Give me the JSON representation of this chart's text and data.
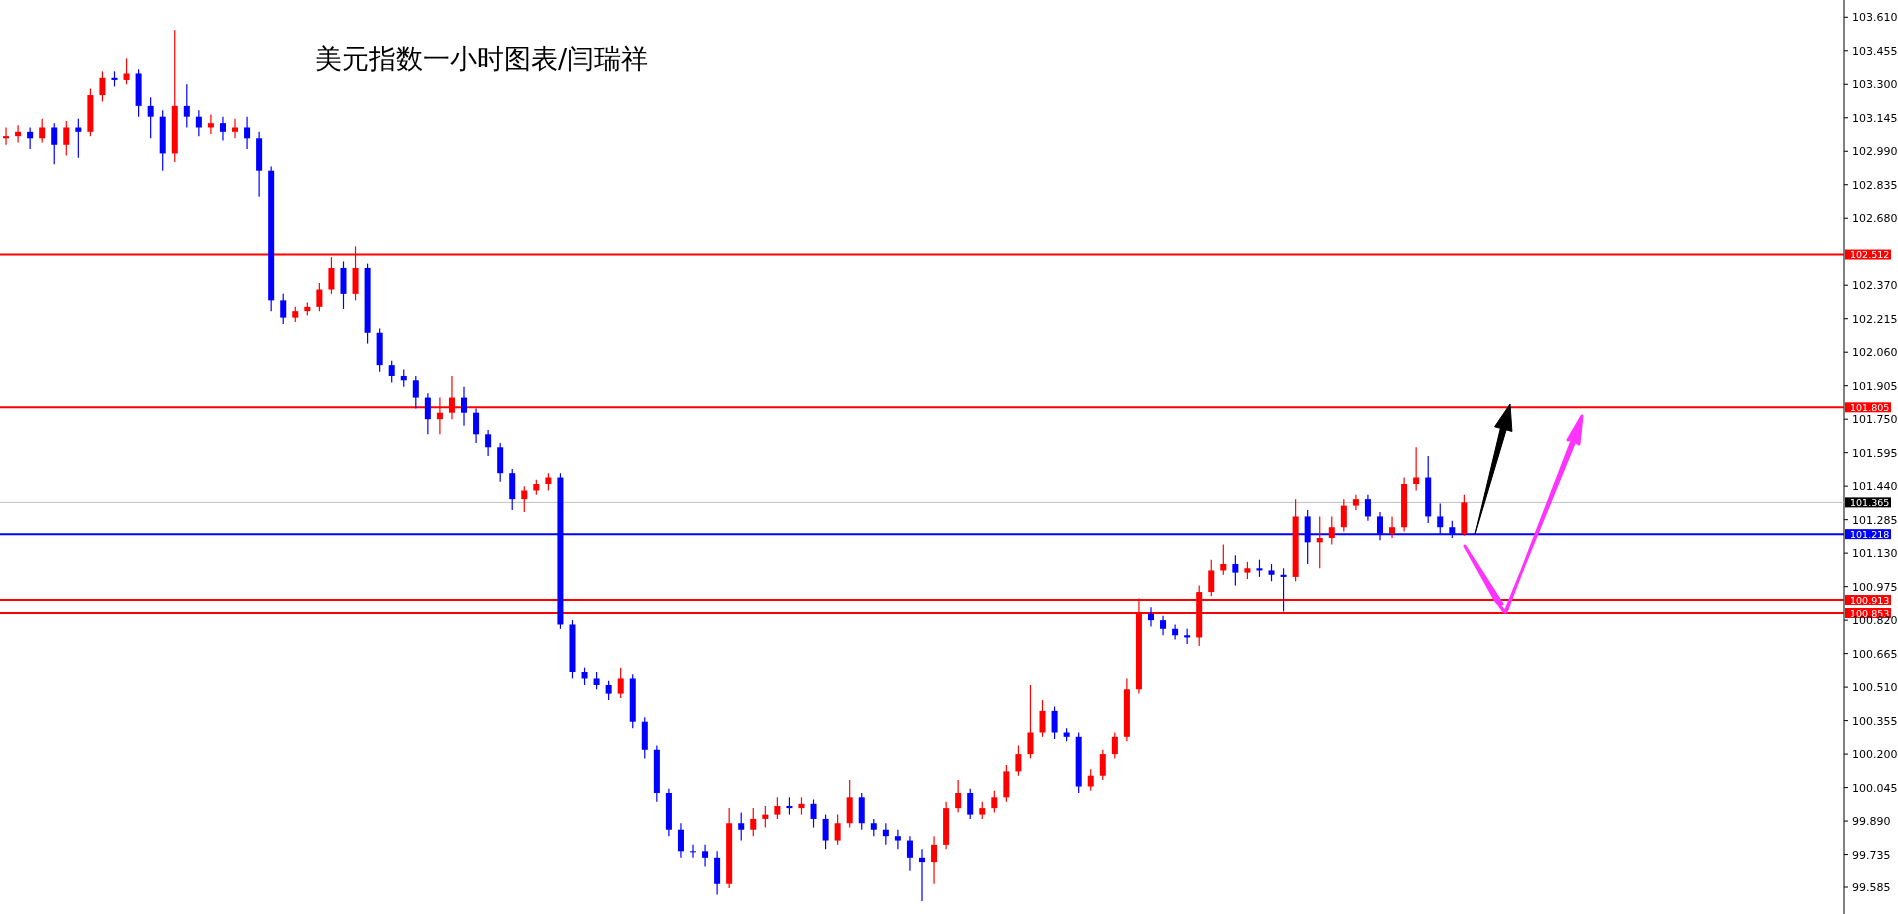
{
  "chart_data": {
    "type": "candlestick",
    "title": "美元指数一小时图表/闫瑞祥",
    "tick_labels": "y",
    "grid": false,
    "categories": [
      null,
      null,
      null,
      null,
      null,
      null,
      null,
      null,
      null,
      null,
      null,
      null,
      null,
      null,
      null,
      null,
      null,
      null,
      null,
      null,
      null,
      null,
      null,
      null,
      null,
      null,
      null,
      null,
      null,
      null,
      null,
      null,
      null,
      null,
      null,
      null,
      null,
      null,
      null,
      null,
      null,
      null,
      null,
      null,
      null,
      null,
      null,
      null,
      null,
      null,
      null,
      null,
      null,
      null,
      null,
      null,
      null,
      null,
      null,
      null,
      null,
      null,
      null,
      null,
      null,
      null,
      null,
      null,
      null,
      null,
      null,
      null,
      null,
      null,
      null,
      null,
      null,
      null,
      null,
      null,
      null,
      null,
      null,
      null,
      null,
      null,
      null,
      null,
      null,
      null,
      null,
      null,
      null,
      null,
      null,
      null,
      null,
      null,
      null,
      null,
      null,
      null,
      null,
      null,
      null,
      null,
      null,
      null,
      null,
      null,
      null,
      null,
      null,
      null,
      null,
      null,
      null,
      null,
      null,
      null,
      null,
      null,
      null,
      null,
      null,
      null,
      null,
      null,
      null,
      null,
      null,
      null,
      null,
      null,
      null,
      null,
      null,
      null,
      null,
      null,
      null,
      null,
      null,
      null,
      null,
      null,
      null,
      null,
      null,
      null,
      null,
      null,
      null
    ],
    "ohlc": [
      [
        103.05,
        103.1,
        103.02,
        103.06
      ],
      [
        103.06,
        103.11,
        103.03,
        103.08
      ],
      [
        103.08,
        103.1,
        103.0,
        103.05
      ],
      [
        103.05,
        103.14,
        103.03,
        103.1
      ],
      [
        103.1,
        103.12,
        102.93,
        103.02
      ],
      [
        103.02,
        103.13,
        102.97,
        103.1
      ],
      [
        103.1,
        103.14,
        102.96,
        103.08
      ],
      [
        103.08,
        103.28,
        103.06,
        103.25
      ],
      [
        103.25,
        103.36,
        103.22,
        103.33
      ],
      [
        103.33,
        103.36,
        103.29,
        103.32
      ],
      [
        103.32,
        103.42,
        103.3,
        103.35
      ],
      [
        103.35,
        103.37,
        103.15,
        103.2
      ],
      [
        103.2,
        103.24,
        103.05,
        103.15
      ],
      [
        103.15,
        103.18,
        102.9,
        102.98
      ],
      [
        102.98,
        103.55,
        102.94,
        103.2
      ],
      [
        103.2,
        103.3,
        103.1,
        103.15
      ],
      [
        103.15,
        103.18,
        103.06,
        103.1
      ],
      [
        103.1,
        103.16,
        103.07,
        103.12
      ],
      [
        103.12,
        103.15,
        103.04,
        103.08
      ],
      [
        103.08,
        103.14,
        103.05,
        103.1
      ],
      [
        103.1,
        103.15,
        103.0,
        103.05
      ],
      [
        103.05,
        103.08,
        102.78,
        102.9
      ],
      [
        102.9,
        102.92,
        102.25,
        102.3
      ],
      [
        102.3,
        102.33,
        102.19,
        102.22
      ],
      [
        102.22,
        102.27,
        102.2,
        102.25
      ],
      [
        102.25,
        102.29,
        102.23,
        102.27
      ],
      [
        102.27,
        102.38,
        102.25,
        102.35
      ],
      [
        102.35,
        102.5,
        102.33,
        102.45
      ],
      [
        102.45,
        102.48,
        102.26,
        102.33
      ],
      [
        102.33,
        102.55,
        102.3,
        102.45
      ],
      [
        102.45,
        102.47,
        102.1,
        102.15
      ],
      [
        102.15,
        102.17,
        101.97,
        102.0
      ],
      [
        102.0,
        102.02,
        101.92,
        101.95
      ],
      [
        101.95,
        101.98,
        101.9,
        101.93
      ],
      [
        101.93,
        101.95,
        101.8,
        101.85
      ],
      [
        101.85,
        101.87,
        101.68,
        101.75
      ],
      [
        101.75,
        101.85,
        101.68,
        101.78
      ],
      [
        101.78,
        101.95,
        101.75,
        101.85
      ],
      [
        101.85,
        101.9,
        101.72,
        101.78
      ],
      [
        101.78,
        101.8,
        101.64,
        101.68
      ],
      [
        101.68,
        101.7,
        101.58,
        101.62
      ],
      [
        101.62,
        101.64,
        101.46,
        101.5
      ],
      [
        101.5,
        101.52,
        101.33,
        101.38
      ],
      [
        101.38,
        101.44,
        101.32,
        101.42
      ],
      [
        101.42,
        101.47,
        101.4,
        101.45
      ],
      [
        101.45,
        101.5,
        101.42,
        101.48
      ],
      [
        101.48,
        101.5,
        100.78,
        100.8
      ],
      [
        100.8,
        100.82,
        100.55,
        100.58
      ],
      [
        100.58,
        100.6,
        100.52,
        100.55
      ],
      [
        100.55,
        100.58,
        100.5,
        100.52
      ],
      [
        100.52,
        100.54,
        100.45,
        100.48
      ],
      [
        100.48,
        100.6,
        100.46,
        100.55
      ],
      [
        100.55,
        100.57,
        100.32,
        100.35
      ],
      [
        100.35,
        100.37,
        100.18,
        100.22
      ],
      [
        100.22,
        100.24,
        99.98,
        100.02
      ],
      [
        100.02,
        100.04,
        99.82,
        99.85
      ],
      [
        99.85,
        99.88,
        99.72,
        99.75
      ],
      [
        99.75,
        99.78,
        99.72,
        99.75
      ],
      [
        99.75,
        99.78,
        99.68,
        99.72
      ],
      [
        99.72,
        99.75,
        99.55,
        99.6
      ],
      [
        99.6,
        99.95,
        99.58,
        99.88
      ],
      [
        99.88,
        99.93,
        99.8,
        99.85
      ],
      [
        99.85,
        99.95,
        99.82,
        99.9
      ],
      [
        99.9,
        99.96,
        99.86,
        99.92
      ],
      [
        99.92,
        100.0,
        99.9,
        99.96
      ],
      [
        99.96,
        100.0,
        99.92,
        99.95
      ],
      [
        99.95,
        100.0,
        99.92,
        99.97
      ],
      [
        99.97,
        99.99,
        99.86,
        99.9
      ],
      [
        99.9,
        99.92,
        99.76,
        99.8
      ],
      [
        99.8,
        99.92,
        99.78,
        99.88
      ],
      [
        99.88,
        100.08,
        99.86,
        100.0
      ],
      [
        100.0,
        100.02,
        99.85,
        99.88
      ],
      [
        99.88,
        99.9,
        99.82,
        99.85
      ],
      [
        99.85,
        99.88,
        99.78,
        99.82
      ],
      [
        99.82,
        99.85,
        99.76,
        99.8
      ],
      [
        99.8,
        99.82,
        99.66,
        99.72
      ],
      [
        99.72,
        99.76,
        99.52,
        99.7
      ],
      [
        99.7,
        99.82,
        99.6,
        99.78
      ],
      [
        99.78,
        99.98,
        99.76,
        99.95
      ],
      [
        99.95,
        100.08,
        99.93,
        100.02
      ],
      [
        100.02,
        100.04,
        99.9,
        99.92
      ],
      [
        99.92,
        99.98,
        99.9,
        99.95
      ],
      [
        99.95,
        100.03,
        99.93,
        100.0
      ],
      [
        100.0,
        100.15,
        99.98,
        100.12
      ],
      [
        100.12,
        100.24,
        100.1,
        100.2
      ],
      [
        100.2,
        100.52,
        100.18,
        100.3
      ],
      [
        100.3,
        100.45,
        100.28,
        100.4
      ],
      [
        100.4,
        100.42,
        100.27,
        100.3
      ],
      [
        100.3,
        100.32,
        100.26,
        100.28
      ],
      [
        100.28,
        100.3,
        100.02,
        100.05
      ],
      [
        100.05,
        100.13,
        100.03,
        100.1
      ],
      [
        100.1,
        100.22,
        100.08,
        100.2
      ],
      [
        100.2,
        100.3,
        100.18,
        100.28
      ],
      [
        100.28,
        100.55,
        100.26,
        100.5
      ],
      [
        100.5,
        100.92,
        100.48,
        100.85
      ],
      [
        100.85,
        100.88,
        100.79,
        100.82
      ],
      [
        100.82,
        100.84,
        100.75,
        100.78
      ],
      [
        100.78,
        100.8,
        100.73,
        100.75
      ],
      [
        100.75,
        100.78,
        100.71,
        100.74
      ],
      [
        100.74,
        100.98,
        100.7,
        100.95
      ],
      [
        100.95,
        101.1,
        100.93,
        101.05
      ],
      [
        101.05,
        101.17,
        101.03,
        101.08
      ],
      [
        101.08,
        101.12,
        100.98,
        101.04
      ],
      [
        101.04,
        101.09,
        101.01,
        101.06
      ],
      [
        101.06,
        101.1,
        101.02,
        101.05
      ],
      [
        101.05,
        101.08,
        101.0,
        101.03
      ],
      [
        101.03,
        101.06,
        100.86,
        101.02
      ],
      [
        101.02,
        101.38,
        101.0,
        101.3
      ],
      [
        101.3,
        101.33,
        101.08,
        101.18
      ],
      [
        101.18,
        101.3,
        101.06,
        101.2
      ],
      [
        101.2,
        101.3,
        101.17,
        101.25
      ],
      [
        101.25,
        101.38,
        101.23,
        101.35
      ],
      [
        101.35,
        101.4,
        101.33,
        101.38
      ],
      [
        101.38,
        101.4,
        101.28,
        101.3
      ],
      [
        101.3,
        101.32,
        101.19,
        101.22
      ],
      [
        101.22,
        101.3,
        101.2,
        101.25
      ],
      [
        101.25,
        101.48,
        101.23,
        101.45
      ],
      [
        101.45,
        101.62,
        101.42,
        101.48
      ],
      [
        101.48,
        101.58,
        101.27,
        101.3
      ],
      [
        101.3,
        101.36,
        101.22,
        101.25
      ],
      [
        101.25,
        101.28,
        101.2,
        101.22
      ],
      [
        101.22,
        101.4,
        101.21,
        101.365
      ],
      null,
      null,
      null,
      null,
      null,
      null,
      null,
      null,
      null,
      null,
      null,
      null,
      null,
      null,
      null,
      null,
      null,
      null,
      null,
      null,
      null,
      null,
      null,
      null,
      null,
      null,
      null,
      null,
      null,
      null,
      null
    ],
    "colors": [
      "#ff0000",
      "#ff0000",
      "#0000ff",
      "#ff0000",
      "#0000ff",
      "#ff0000",
      "#0000ff",
      "#ff0000",
      "#ff0000",
      "#0000ff",
      "#ff0000",
      "#0000ff",
      "#0000ff",
      "#0000ff",
      "#ff0000",
      "#0000ff",
      "#0000ff",
      "#ff0000",
      "#0000ff",
      "#ff0000",
      "#0000ff",
      "#0000ff",
      "#0000ff",
      "#0000ff",
      "#ff0000",
      "#ff0000",
      "#ff0000",
      "#ff0000",
      "#0000ff",
      "#ff0000",
      "#0000ff",
      "#0000ff",
      "#0000ff",
      "#0000ff",
      "#0000ff",
      "#0000ff",
      "#ff0000",
      "#ff0000",
      "#0000ff",
      "#0000ff",
      "#0000ff",
      "#0000ff",
      "#0000ff",
      "#ff0000",
      "#ff0000",
      "#ff0000",
      "#0000ff",
      "#0000ff",
      "#0000ff",
      "#0000ff",
      "#0000ff",
      "#ff0000",
      "#0000ff",
      "#0000ff",
      "#0000ff",
      "#0000ff",
      "#0000ff",
      "#0000ff",
      "#0000ff",
      "#0000ff",
      "#ff0000",
      "#0000ff",
      "#ff0000",
      "#ff0000",
      "#ff0000",
      "#0000ff",
      "#ff0000",
      "#0000ff",
      "#0000ff",
      "#ff0000",
      "#ff0000",
      "#0000ff",
      "#0000ff",
      "#0000ff",
      "#0000ff",
      "#0000ff",
      "#0000ff",
      "#ff0000",
      "#ff0000",
      "#ff0000",
      "#0000ff",
      "#ff0000",
      "#ff0000",
      "#ff0000",
      "#ff0000",
      "#ff0000",
      "#ff0000",
      "#0000ff",
      "#0000ff",
      "#0000ff",
      "#ff0000",
      "#ff0000",
      "#ff0000",
      "#ff0000",
      "#ff0000",
      "#0000ff",
      "#0000ff",
      "#0000ff",
      "#0000ff",
      "#ff0000",
      "#ff0000",
      "#ff0000",
      "#0000ff",
      "#ff0000",
      "#0000ff",
      "#0000ff",
      "#0000ff",
      "#ff0000",
      "#0000ff",
      "#ff0000",
      "#ff0000",
      "#ff0000",
      "#ff0000",
      "#0000ff",
      "#0000ff",
      "#ff0000",
      "#ff0000",
      "#ff0000",
      "#0000ff",
      "#0000ff",
      "#0000ff",
      "#ff0000",
      null,
      null,
      null,
      null,
      null,
      null,
      null,
      null,
      null,
      null,
      null,
      null,
      null,
      null,
      null,
      null,
      null,
      null,
      null,
      null,
      null,
      null,
      null,
      null,
      null,
      null,
      null,
      null,
      null,
      null,
      null
    ],
    "ylim": [
      99.46,
      103.69
    ],
    "yticks": [
      {
        "value": 99.585,
        "label": "99.585"
      },
      {
        "value": 99.735,
        "label": "99.735"
      },
      {
        "value": 99.89,
        "label": "99.890"
      },
      {
        "value": 100.045,
        "label": "100.045"
      },
      {
        "value": 100.2,
        "label": "100.200"
      },
      {
        "value": 100.355,
        "label": "100.355"
      },
      {
        "value": 100.51,
        "label": "100.510"
      },
      {
        "value": 100.665,
        "label": "100.665"
      },
      {
        "value": 100.82,
        "label": "100.820"
      },
      {
        "value": 100.975,
        "label": "100.975"
      },
      {
        "value": 101.13,
        "label": "101.130"
      },
      {
        "value": 101.285,
        "label": "101.285"
      },
      {
        "value": 101.44,
        "label": "101.440"
      },
      {
        "value": 101.595,
        "label": "101.595"
      },
      {
        "value": 101.75,
        "label": "101.750"
      },
      {
        "value": 101.905,
        "label": "101.905"
      },
      {
        "value": 102.06,
        "label": "102.060"
      },
      {
        "value": 102.215,
        "label": "102.215"
      },
      {
        "value": 102.37,
        "label": "102.370"
      },
      {
        "value": 102.68,
        "label": "102.680"
      },
      {
        "value": 102.835,
        "label": "102.835"
      },
      {
        "value": 102.99,
        "label": "102.990"
      },
      {
        "value": 103.145,
        "label": "103.145"
      },
      {
        "value": 103.3,
        "label": "103.300"
      },
      {
        "value": 103.455,
        "label": "103.455"
      },
      {
        "value": 103.61,
        "label": "103.610"
      }
    ],
    "ref_lines": [
      {
        "axis": "y",
        "value": 102.512,
        "label": "102.512",
        "color": "#ff0000"
      },
      {
        "axis": "y",
        "value": 101.805,
        "label": "101.805",
        "color": "#ff0000"
      },
      {
        "axis": "y",
        "value": 101.365,
        "label": "101.365",
        "color": "#c0c0c0"
      },
      {
        "axis": "y",
        "value": 101.218,
        "label": "101.218",
        "color": "#0000ff"
      },
      {
        "axis": "y",
        "value": 100.913,
        "label": "100.913",
        "color": "#ff0000"
      },
      {
        "axis": "y",
        "value": 100.853,
        "label": "100.853",
        "color": "#ff0000"
      }
    ]
  }
}
